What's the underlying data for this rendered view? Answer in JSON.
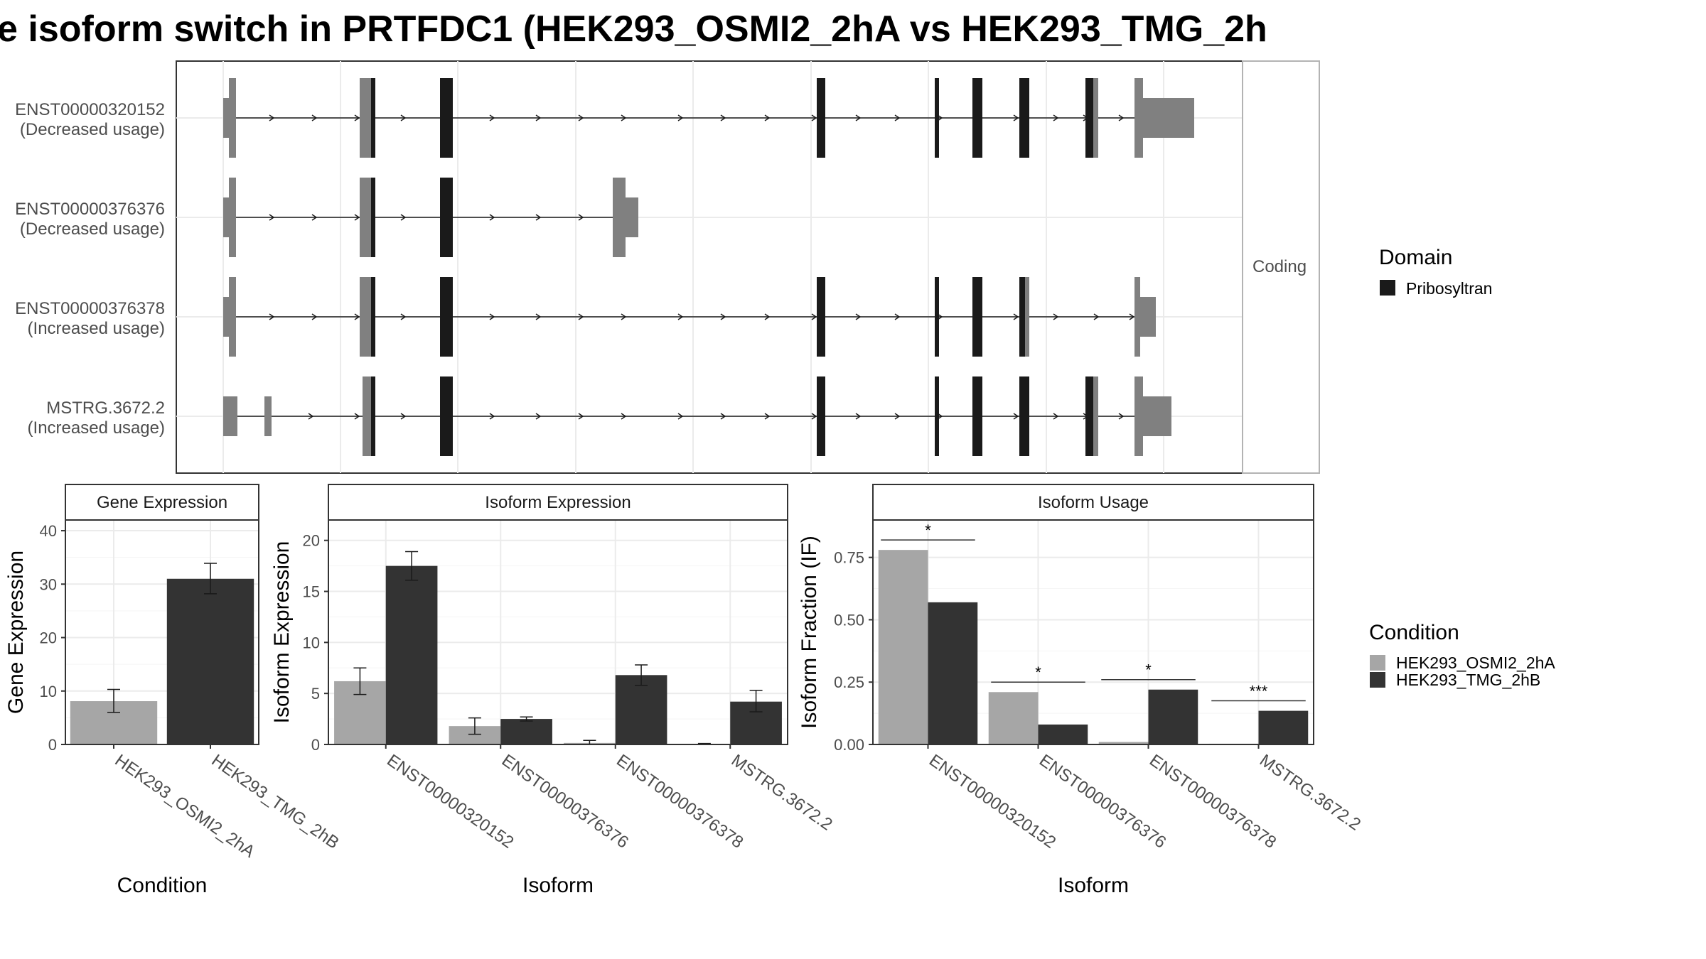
{
  "title": "e isoform switch in PRTFDC1 (HEK293_OSMI2_2hA vs HEK293_TMG_2h",
  "structure": {
    "facet_label": "Coding",
    "isoforms": [
      {
        "id": "ENST00000320152",
        "usage": "(Decreased usage)"
      },
      {
        "id": "ENST00000376376",
        "usage": "(Decreased usage)"
      },
      {
        "id": "ENST00000376378",
        "usage": "(Increased usage)"
      },
      {
        "id": "MSTRG.3672.2",
        "usage": "(Increased usage)"
      }
    ],
    "colors": {
      "utr": "#808080",
      "domain": "#1a1a1a"
    }
  },
  "domain_legend": {
    "title": "Domain",
    "items": [
      {
        "label": "Pribosyltran",
        "color": "#1a1a1a"
      }
    ]
  },
  "condition_legend": {
    "title": "Condition",
    "items": [
      {
        "label": "HEK293_OSMI2_2hA",
        "color": "#a6a6a6"
      },
      {
        "label": "HEK293_TMG_2hB",
        "color": "#333333"
      }
    ]
  },
  "chart_data": [
    {
      "type": "bar",
      "title": "Gene Expression",
      "xlabel": "Condition",
      "ylabel": "Gene Expression",
      "ylim": [
        0,
        42
      ],
      "yticks": [
        0,
        10,
        20,
        30,
        40
      ],
      "categories": [
        "HEK293_OSMI2_2hA",
        "HEK293_TMG_2hB"
      ],
      "values": [
        8.1,
        31.0
      ],
      "errors": [
        [
          6.0,
          10.3
        ],
        [
          28.2,
          33.9
        ]
      ],
      "colors": [
        "#a6a6a6",
        "#333333"
      ]
    },
    {
      "type": "bar",
      "title": "Isoform Expression",
      "xlabel": "Isoform",
      "ylabel": "Isoform Expression",
      "ylim": [
        0,
        22
      ],
      "yticks": [
        0,
        5,
        10,
        15,
        20
      ],
      "categories": [
        "ENST00000320152",
        "ENST00000376376",
        "ENST00000376378",
        "MSTRG.3672.2"
      ],
      "series": [
        {
          "name": "HEK293_OSMI2_2hA",
          "values": [
            6.2,
            1.8,
            0.15,
            0.05
          ],
          "errors": [
            [
              4.9,
              7.5
            ],
            [
              1.0,
              2.6
            ],
            [
              0.0,
              0.4
            ],
            [
              0.0,
              0.1
            ]
          ]
        },
        {
          "name": "HEK293_TMG_2hB",
          "values": [
            17.5,
            2.5,
            6.8,
            4.2
          ],
          "errors": [
            [
              16.1,
              18.9
            ],
            [
              2.3,
              2.7
            ],
            [
              5.8,
              7.8
            ],
            [
              3.2,
              5.3
            ]
          ]
        }
      ]
    },
    {
      "type": "bar",
      "title": "Isoform Usage",
      "xlabel": "Isoform",
      "ylabel": "Isoform Fraction (IF)",
      "ylim": [
        0,
        0.9
      ],
      "yticks": [
        "0.00",
        "0.25",
        "0.50",
        "0.75"
      ],
      "categories": [
        "ENST00000320152",
        "ENST00000376376",
        "ENST00000376378",
        "MSTRG.3672.2"
      ],
      "series": [
        {
          "name": "HEK293_OSMI2_2hA",
          "values": [
            0.78,
            0.21,
            0.01,
            0.003
          ]
        },
        {
          "name": "HEK293_TMG_2hB",
          "values": [
            0.57,
            0.08,
            0.22,
            0.135
          ]
        }
      ],
      "significance": [
        "*",
        "*",
        "*",
        "***"
      ],
      "significance_level": [
        0.82,
        0.25,
        0.26,
        0.175
      ]
    }
  ]
}
